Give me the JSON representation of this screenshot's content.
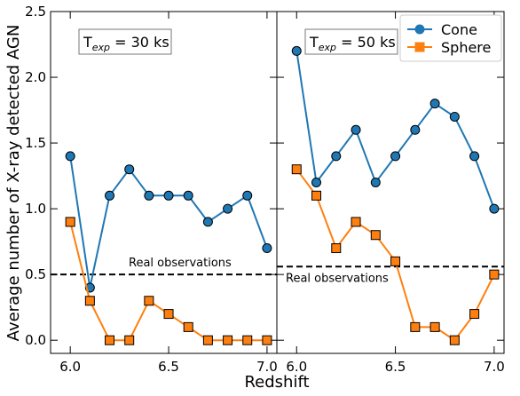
{
  "chart_data": {
    "type": "line",
    "ylabel": "Average number of X-ray detected AGN",
    "xlabel": "Redshift",
    "ylim": [
      -0.1,
      2.5
    ],
    "yticks": [
      "0.0",
      "0.5",
      "1.0",
      "1.5",
      "2.0",
      "2.5"
    ],
    "ytick_values": [
      0.0,
      0.5,
      1.0,
      1.5,
      2.0,
      2.5
    ],
    "xlim": [
      5.9,
      7.05
    ],
    "xticks": [
      "6.0",
      "6.5",
      "7.0"
    ],
    "xtick_values": [
      6.0,
      6.5,
      7.0
    ],
    "legend": {
      "placement": "top-right",
      "entries": [
        {
          "label": "Cone",
          "color": "#1f77b4",
          "marker": "circle"
        },
        {
          "label": "Sphere",
          "color": "#ff7f0e",
          "marker": "square"
        }
      ]
    },
    "panels": [
      {
        "box_label_prefix": "T",
        "box_label_sub": "exp",
        "box_label_rest": " = 30 ks",
        "reference_line": {
          "value": 0.5,
          "label": "Real observations",
          "label_position": "above"
        },
        "x": [
          6.0,
          6.1,
          6.2,
          6.3,
          6.4,
          6.5,
          6.6,
          6.7,
          6.8,
          6.9,
          7.0
        ],
        "series": [
          {
            "name": "Cone",
            "color": "#1f77b4",
            "marker": "circle",
            "values": [
              1.4,
              0.4,
              1.1,
              1.3,
              1.1,
              1.1,
              1.1,
              0.9,
              1.0,
              1.1,
              0.7
            ]
          },
          {
            "name": "Sphere",
            "color": "#ff7f0e",
            "marker": "square",
            "values": [
              0.9,
              0.3,
              0.0,
              0.0,
              0.3,
              0.2,
              0.1,
              0.0,
              0.0,
              0.0,
              0.0
            ]
          }
        ]
      },
      {
        "box_label_prefix": "T",
        "box_label_sub": "exp",
        "box_label_rest": " = 50 ks",
        "reference_line": {
          "value": 0.56,
          "label": "Real observations",
          "label_position": "below"
        },
        "x": [
          6.0,
          6.1,
          6.2,
          6.3,
          6.4,
          6.5,
          6.6,
          6.7,
          6.8,
          6.9,
          7.0
        ],
        "series": [
          {
            "name": "Cone",
            "color": "#1f77b4",
            "marker": "circle",
            "values": [
              2.2,
              1.2,
              1.4,
              1.6,
              1.2,
              1.4,
              1.6,
              1.8,
              1.7,
              1.4,
              1.0
            ]
          },
          {
            "name": "Sphere",
            "color": "#ff7f0e",
            "marker": "square",
            "values": [
              1.3,
              1.1,
              0.7,
              0.9,
              0.8,
              0.6,
              0.1,
              0.1,
              0.0,
              0.2,
              0.5
            ]
          }
        ]
      }
    ]
  }
}
